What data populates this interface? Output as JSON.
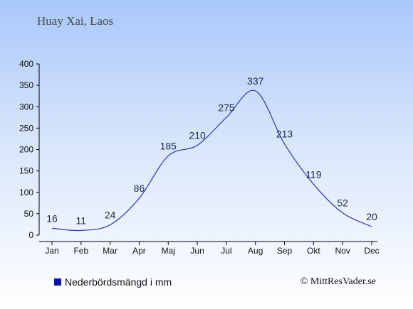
{
  "title": "Huay Xai, Laos",
  "legend": {
    "label": "Nederbördsmängd i mm",
    "color": "#0a14a8"
  },
  "copyright": "© MittResVader.se",
  "chart_data": {
    "type": "line",
    "categories": [
      "Jan",
      "Feb",
      "Mar",
      "Apr",
      "Maj",
      "Jun",
      "Jul",
      "Aug",
      "Sep",
      "Okt",
      "Nov",
      "Dec"
    ],
    "series": [
      {
        "name": "Nederbördsmängd i mm",
        "values": [
          16,
          11,
          24,
          86,
          185,
          210,
          275,
          337,
          213,
          119,
          52,
          20
        ]
      }
    ],
    "ylim": [
      0,
      400
    ],
    "yticks": [
      0,
      50,
      100,
      150,
      200,
      250,
      300,
      350,
      400
    ],
    "line_color": "#2b3aa8",
    "grid": false,
    "legend_position": "bottom-left"
  }
}
